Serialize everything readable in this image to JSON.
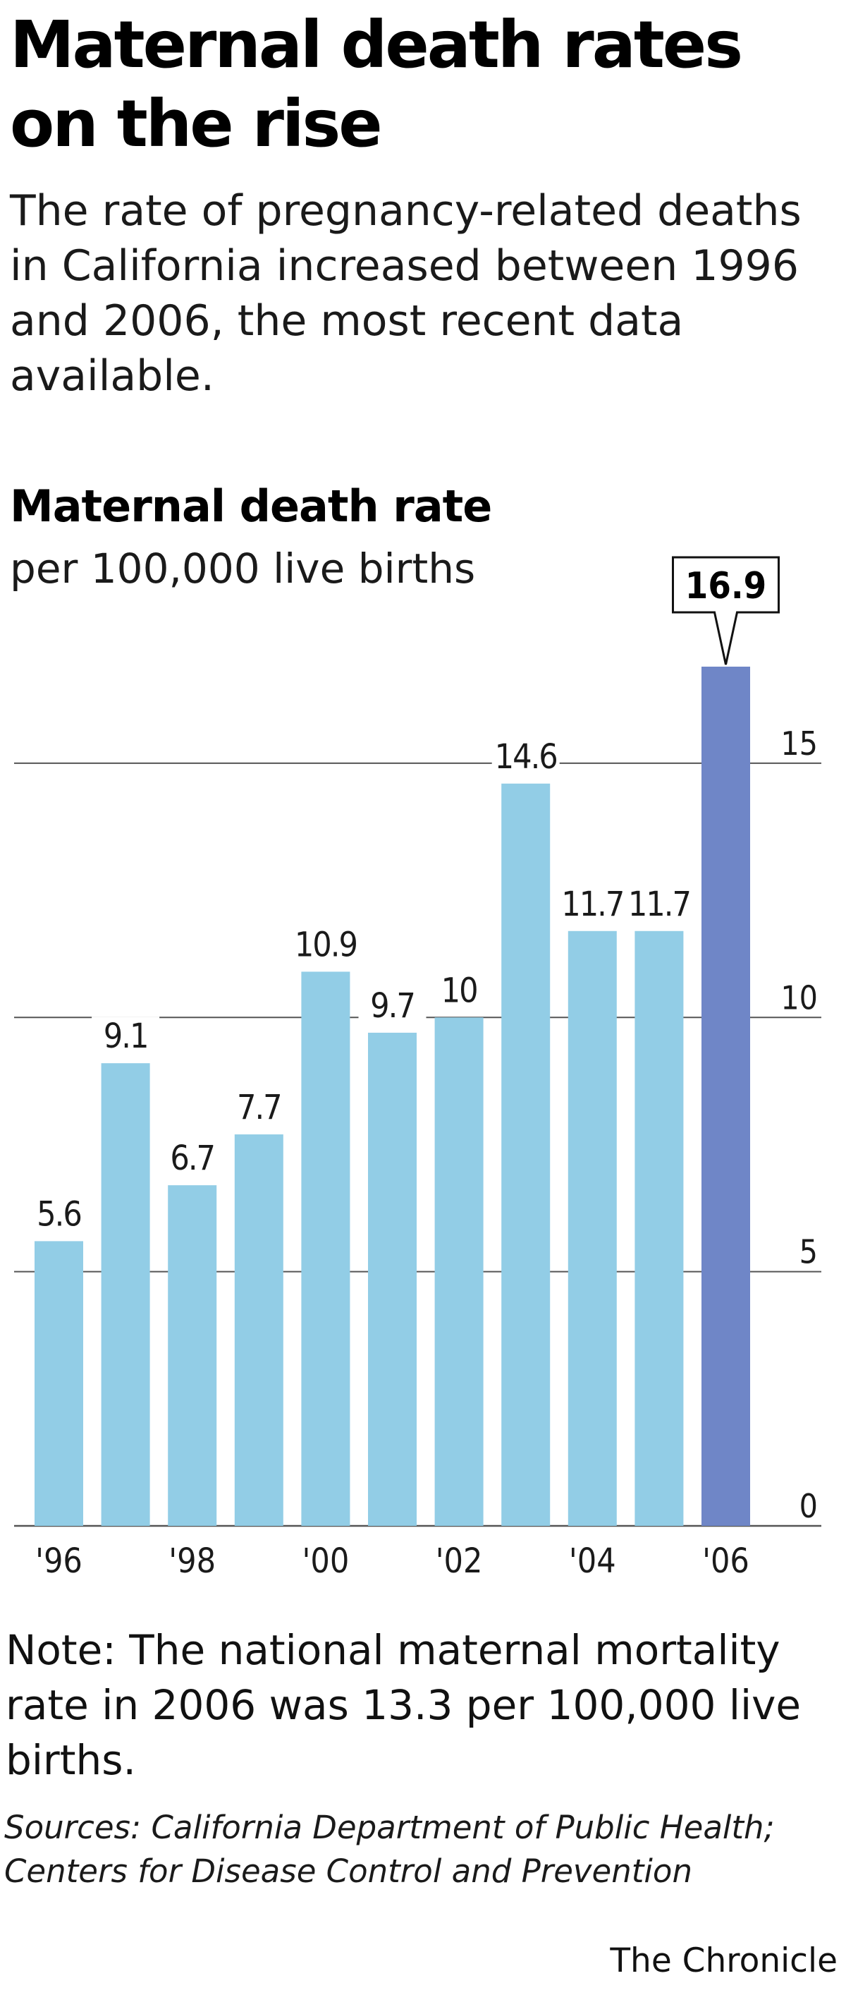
{
  "header": {
    "title": "Maternal death rates on the rise",
    "subtitle": "The rate of pregnancy-related deaths in California increased between 1996 and 2006, the most recent data available."
  },
  "chart_data": {
    "type": "bar",
    "title": "Maternal death rate",
    "ylabel": "per 100,000 live births",
    "categories": [
      "1996",
      "1997",
      "1998",
      "1999",
      "2000",
      "2001",
      "2002",
      "2003",
      "2004",
      "2005",
      "2006"
    ],
    "values": [
      5.6,
      9.1,
      6.7,
      7.7,
      10.9,
      9.7,
      10,
      14.6,
      11.7,
      11.7,
      16.9
    ],
    "value_labels": [
      "5.6",
      "9.1",
      "6.7",
      "7.7",
      "10.9",
      "9.7",
      "10",
      "14.6",
      "11.7",
      "11.7",
      "16.9"
    ],
    "x_tick_labels": [
      "'96",
      "",
      "'98",
      "",
      "'00",
      "",
      "'02",
      "",
      "'04",
      "",
      "'06"
    ],
    "y_ticks": [
      0,
      5,
      10,
      15
    ],
    "y_tick_labels": [
      "0",
      "5",
      "10",
      "15"
    ],
    "ylim": [
      0,
      16.9
    ],
    "grid": true,
    "highlight_category": "2006",
    "colors": {
      "bar": "#92cde6",
      "highlight": "#6f86c7",
      "grid": "#555555",
      "text": "#1a1a1a"
    }
  },
  "footer": {
    "note": "Note: The national maternal mortality rate in 2006 was 13.3 per 100,000 live births.",
    "sources": "Sources: California Department of Public Health; Centers for Disease Control and Prevention",
    "credit": "The Chronicle"
  }
}
